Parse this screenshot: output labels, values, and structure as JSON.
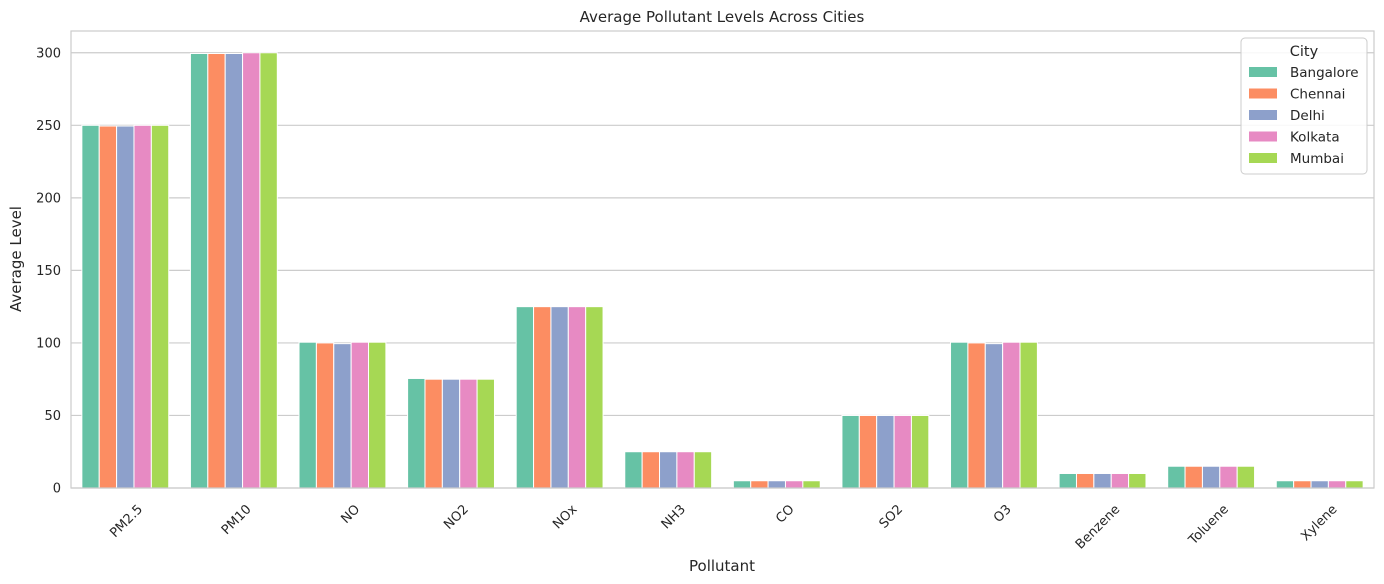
{
  "chart_data": {
    "type": "bar",
    "title": "Average Pollutant Levels Across Cities",
    "xlabel": "Pollutant",
    "ylabel": "Average Level",
    "ylim": [
      0,
      315
    ],
    "yticks": [
      0,
      50,
      100,
      150,
      200,
      250,
      300
    ],
    "grid": true,
    "legend_title": "City",
    "legend_position": "top-right",
    "categories": [
      "PM2.5",
      "PM10",
      "NO",
      "NO2",
      "NOx",
      "NH3",
      "CO",
      "SO2",
      "O3",
      "Benzene",
      "Toluene",
      "Xylene"
    ],
    "series": [
      {
        "name": "Bangalore",
        "color": "#66c2a5",
        "values": [
          250,
          299.5,
          100.5,
          75.5,
          125,
          25,
          5,
          50,
          100.5,
          10,
          15,
          5
        ]
      },
      {
        "name": "Chennai",
        "color": "#fc8d62",
        "values": [
          249.5,
          299.5,
          100,
          75,
          125,
          25,
          5,
          50,
          100,
          10,
          15,
          5
        ]
      },
      {
        "name": "Delhi",
        "color": "#8da0cb",
        "values": [
          249.5,
          299.5,
          99.5,
          75,
          125,
          25,
          5,
          50,
          99.5,
          10,
          15,
          5
        ]
      },
      {
        "name": "Kolkata",
        "color": "#e78ac3",
        "values": [
          250,
          300,
          100.5,
          75,
          125,
          25,
          5,
          50,
          100.5,
          10,
          15,
          5
        ]
      },
      {
        "name": "Mumbai",
        "color": "#a6d854",
        "values": [
          250,
          300,
          100.5,
          75,
          125,
          25,
          5,
          50,
          100.5,
          10,
          15,
          5
        ]
      }
    ]
  }
}
